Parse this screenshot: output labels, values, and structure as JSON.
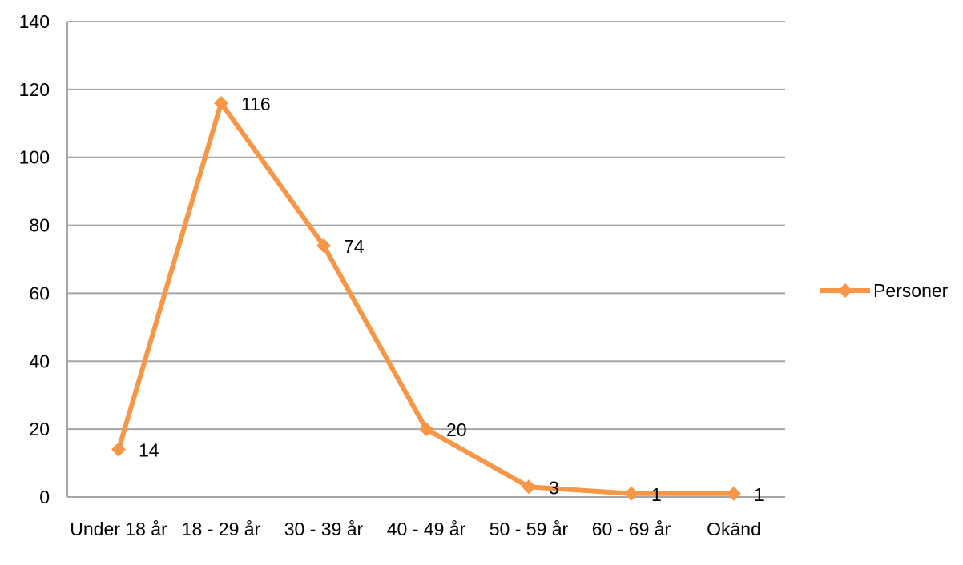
{
  "chart_data": {
    "type": "line",
    "categories": [
      "Under 18 år",
      "18 - 29 år",
      "30 - 39 år",
      "40 - 49 år",
      "50 - 59 år",
      "60 - 69 år",
      "Okänd"
    ],
    "series": [
      {
        "name": "Personer",
        "values": [
          14,
          116,
          74,
          20,
          3,
          1,
          1
        ],
        "color": "#f79646",
        "marker": "diamond"
      }
    ],
    "ylim": [
      0,
      140
    ],
    "yticks": [
      "0",
      "20",
      "40",
      "60",
      "80",
      "100",
      "120",
      "140"
    ],
    "grid": true,
    "legend": "right",
    "data_labels": true
  }
}
